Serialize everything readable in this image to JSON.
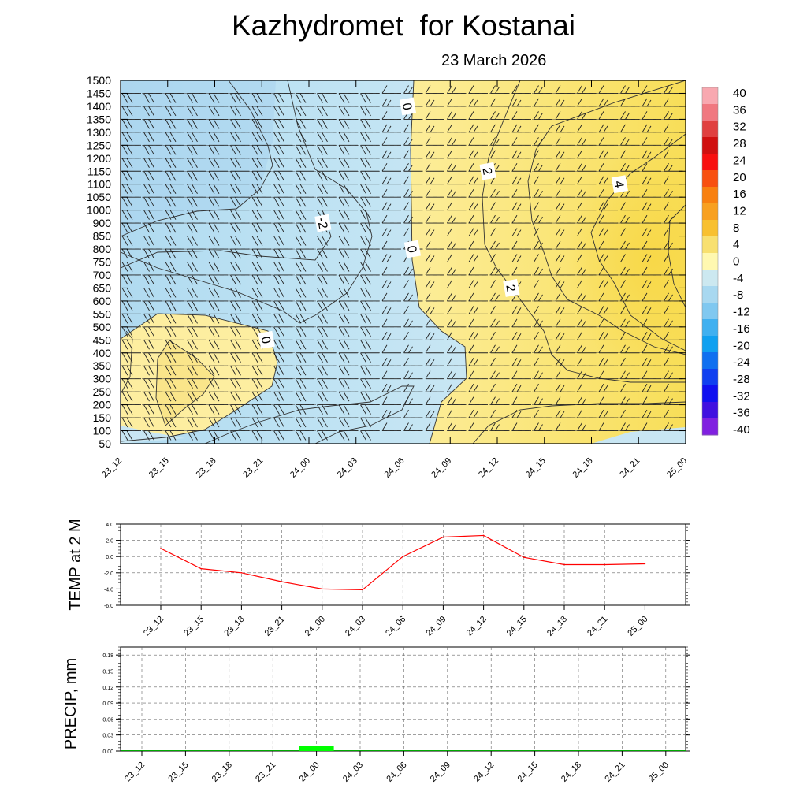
{
  "title": "Kazhydromet  for Kostanai",
  "date": "23 March 2026",
  "chart_data": [
    {
      "type": "heatmap",
      "name": "temperature-cross-section",
      "x_labels": [
        "23_12",
        "23_15",
        "23_18",
        "23_21",
        "24_00",
        "24_03",
        "24_06",
        "24_09",
        "24_12",
        "24_15",
        "24_18",
        "24_21",
        "25_00"
      ],
      "y_levels": [
        50,
        100,
        150,
        200,
        250,
        300,
        350,
        400,
        450,
        500,
        550,
        600,
        650,
        700,
        750,
        800,
        850,
        900,
        1000,
        1050,
        1100,
        1150,
        1200,
        1250,
        1300,
        1350,
        1400,
        1450,
        1500
      ],
      "ylim": [
        50,
        1500
      ],
      "contour_labels": [
        {
          "text": "0",
          "x": 6.1,
          "y": 1400
        },
        {
          "text": "2",
          "x": 7.8,
          "y": 1150
        },
        {
          "text": "-2",
          "x": 4.3,
          "y": 900
        },
        {
          "text": "4",
          "x": 10.6,
          "y": 1100
        },
        {
          "text": "0",
          "x": 6.2,
          "y": 800
        },
        {
          "text": "2",
          "x": 8.3,
          "y": 650
        },
        {
          "text": "0",
          "x": 3.1,
          "y": 450
        }
      ],
      "colorbar": {
        "labels": [
          "40",
          "36",
          "32",
          "28",
          "24",
          "20",
          "16",
          "12",
          "8",
          "4",
          "0",
          "-4",
          "-8",
          "-12",
          "-16",
          "-20",
          "-24",
          "-28",
          "-32",
          "-36",
          "-40"
        ],
        "colors": [
          "#f8a8b0",
          "#f07880",
          "#e04040",
          "#d01010",
          "#f81010",
          "#f85010",
          "#f88010",
          "#f8a020",
          "#f8c030",
          "#f8e070",
          "#fff8b0",
          "#cce8f0",
          "#a8d8f0",
          "#80c8f0",
          "#40b0f0",
          "#10a0f0",
          "#1070f0",
          "#1040f0",
          "#1010f0",
          "#4010e0",
          "#8020e0"
        ]
      }
    },
    {
      "type": "line",
      "name": "temp-2m",
      "ylabel": "TEMP at 2 M",
      "ylim": [
        -6,
        4
      ],
      "y_ticks": [
        "4.0",
        "2.0",
        "0.0",
        "-2.0",
        "-4.0",
        "-6.0"
      ],
      "categories": [
        "23_12",
        "23_15",
        "23_18",
        "23_21",
        "24_00",
        "24_03",
        "24_06",
        "24_09",
        "24_12",
        "24_15",
        "24_18",
        "24_21",
        "25_00"
      ],
      "values": [
        1.0,
        -1.5,
        -2.0,
        -3.1,
        -4.0,
        -4.1,
        0.0,
        2.4,
        2.6,
        -0.1,
        -1.0,
        -1.0,
        -0.9
      ],
      "line_color": "#ff0000"
    },
    {
      "type": "bar",
      "name": "precip",
      "ylabel": "PRECIP, mm",
      "ylim": [
        0,
        0.195
      ],
      "y_ticks": [
        "0.18",
        "0.15",
        "0.12",
        "0.09",
        "0.06",
        "0.03",
        "0.00"
      ],
      "categories": [
        "23_12",
        "23_15",
        "23_18",
        "23_21",
        "24_00",
        "24_03",
        "24_06",
        "24_09",
        "24_12",
        "24_15",
        "24_18",
        "24_21",
        "25_00"
      ],
      "values": [
        0,
        0,
        0,
        0,
        0.01,
        0,
        0,
        0,
        0,
        0,
        0,
        0,
        0
      ],
      "bar_color": "#00ff00"
    }
  ]
}
